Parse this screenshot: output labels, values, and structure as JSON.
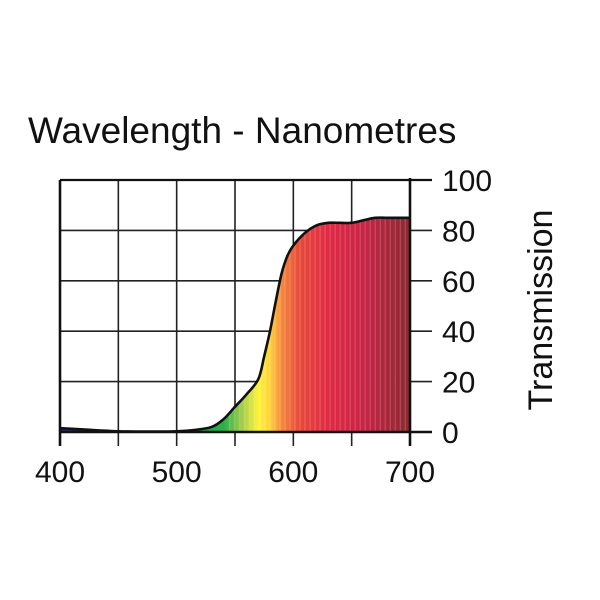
{
  "chart_data": {
    "type": "area",
    "title": "Wavelength - Nanometres",
    "xlabel": "Wavelength - Nanometres",
    "ylabel": "Transmission",
    "xlim": [
      400,
      700
    ],
    "ylim": [
      0,
      100
    ],
    "x_ticks": [
      400,
      500,
      600,
      700
    ],
    "x_tick_labels": [
      "400",
      "500",
      "600",
      "700"
    ],
    "x_grid": [
      400,
      450,
      500,
      550,
      600,
      650,
      700
    ],
    "y_ticks": [
      0,
      20,
      40,
      60,
      80,
      100
    ],
    "y_tick_labels": [
      "0",
      "20",
      "40",
      "60",
      "80",
      "100"
    ],
    "y_axis_side": "right",
    "grid": true,
    "series": [
      {
        "name": "Transmission",
        "x": [
          400,
          420,
          450,
          480,
          500,
          515,
          530,
          540,
          550,
          560,
          570,
          575,
          580,
          585,
          590,
          595,
          600,
          610,
          620,
          630,
          640,
          650,
          660,
          670,
          680,
          690,
          700
        ],
        "y": [
          1.5,
          1.0,
          0.3,
          0.2,
          0.3,
          0.8,
          2.0,
          5.0,
          10.0,
          15.0,
          21.0,
          30.0,
          40.0,
          52.0,
          63.0,
          70.0,
          74.0,
          79.0,
          82.0,
          83.0,
          83.0,
          83.0,
          84.0,
          85.0,
          85.0,
          85.0,
          85.0
        ]
      }
    ],
    "spectrum_colors": [
      {
        "nm": 400,
        "color": "#2a2f6e"
      },
      {
        "nm": 440,
        "color": "#2a3a80"
      },
      {
        "nm": 480,
        "color": "#2a6a8a"
      },
      {
        "nm": 520,
        "color": "#1fa84a"
      },
      {
        "nm": 540,
        "color": "#27b04a"
      },
      {
        "nm": 555,
        "color": "#9cc94a"
      },
      {
        "nm": 570,
        "color": "#fff23a"
      },
      {
        "nm": 580,
        "color": "#ffd23a"
      },
      {
        "nm": 590,
        "color": "#f6883e"
      },
      {
        "nm": 605,
        "color": "#e84a3a"
      },
      {
        "nm": 630,
        "color": "#e02a44"
      },
      {
        "nm": 660,
        "color": "#c82446"
      },
      {
        "nm": 700,
        "color": "#8a2a30"
      }
    ],
    "colors": {
      "line": "#111111",
      "grid": "#222222",
      "text": "#111111"
    }
  }
}
